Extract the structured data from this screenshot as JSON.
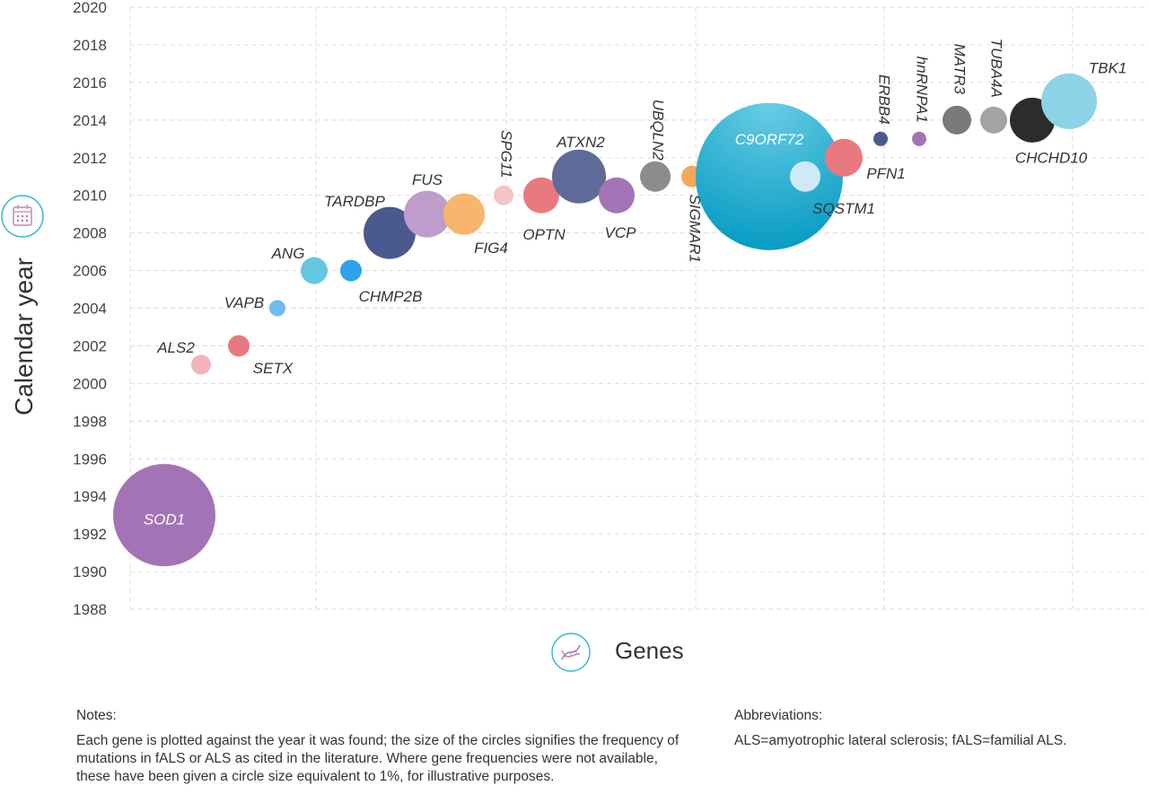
{
  "chart_data": {
    "type": "scatter",
    "subtype": "bubble",
    "xlabel": "Genes",
    "ylabel": "Calendar year",
    "ylim": [
      1988,
      2020
    ],
    "ytick_step": 2,
    "grid": true,
    "points": [
      {
        "label": "SOD1",
        "year": 1993,
        "color": "#a374b5"
      },
      {
        "label": "ALS2",
        "year": 2001,
        "color": "#f2b4b8"
      },
      {
        "label": "SETX",
        "year": 2002,
        "color": "#e8797f"
      },
      {
        "label": "VAPB",
        "year": 2004,
        "color": "#6ebcf0"
      },
      {
        "label": "ANG",
        "year": 2006,
        "color": "#64c8e0"
      },
      {
        "label": "CHMP2B",
        "year": 2006,
        "color": "#2ea2ea"
      },
      {
        "label": "TARDBP",
        "year": 2008,
        "color": "#4a5a8e"
      },
      {
        "label": "FUS",
        "year": 2009,
        "color": "#c09ccc"
      },
      {
        "label": "FIG4",
        "year": 2009,
        "color": "#f7b56d"
      },
      {
        "label": "SPG11",
        "year": 2010,
        "color": "#f5c3c6"
      },
      {
        "label": "OPTN",
        "year": 2010,
        "color": "#e8797f"
      },
      {
        "label": "ATXN2",
        "year": 2011,
        "color": "#5e6b99"
      },
      {
        "label": "VCP",
        "year": 2010,
        "color": "#a374b5"
      },
      {
        "label": "UBQLN2",
        "year": 2011,
        "color": "#8c8c8c"
      },
      {
        "label": "SIGMAR1",
        "year": 2011,
        "color": "#f5a85c"
      },
      {
        "label": "C9ORF72",
        "year": 2011,
        "color": "#1aa9cc"
      },
      {
        "label": "SQSTM1",
        "year": 2011,
        "color": "#cfe9f7"
      },
      {
        "label": "PFN1",
        "year": 2012,
        "color": "#e8797f"
      },
      {
        "label": "ERBB4",
        "year": 2013,
        "color": "#4a5a8e"
      },
      {
        "label": "hnRNPA1",
        "year": 2013,
        "color": "#a374b5"
      },
      {
        "label": "MATR3",
        "year": 2014,
        "color": "#7a7a7a"
      },
      {
        "label": "TUBA4A",
        "year": 2014,
        "color": "#a3a3a3"
      },
      {
        "label": "CHCHD10",
        "year": 2014,
        "color": "#2c2c2c"
      },
      {
        "label": "TBK1",
        "year": 2015,
        "color": "#8dd2e6"
      }
    ]
  },
  "notes": {
    "heading": "Notes:",
    "text": "Each gene is plotted against the year it was found; the size of the circles signifies the frequency of mutations in fALS or ALS as cited in the literature. Where gene frequencies were not available, these have been given a circle size equivalent to 1%, for illustrative purposes."
  },
  "abbreviations": {
    "heading": "Abbreviations:",
    "text": "ALS=amyotrophic lateral sclerosis; fALS=familial ALS."
  },
  "icons": {
    "y_axis_icon": "calendar-icon",
    "x_axis_icon": "dna-icon"
  }
}
